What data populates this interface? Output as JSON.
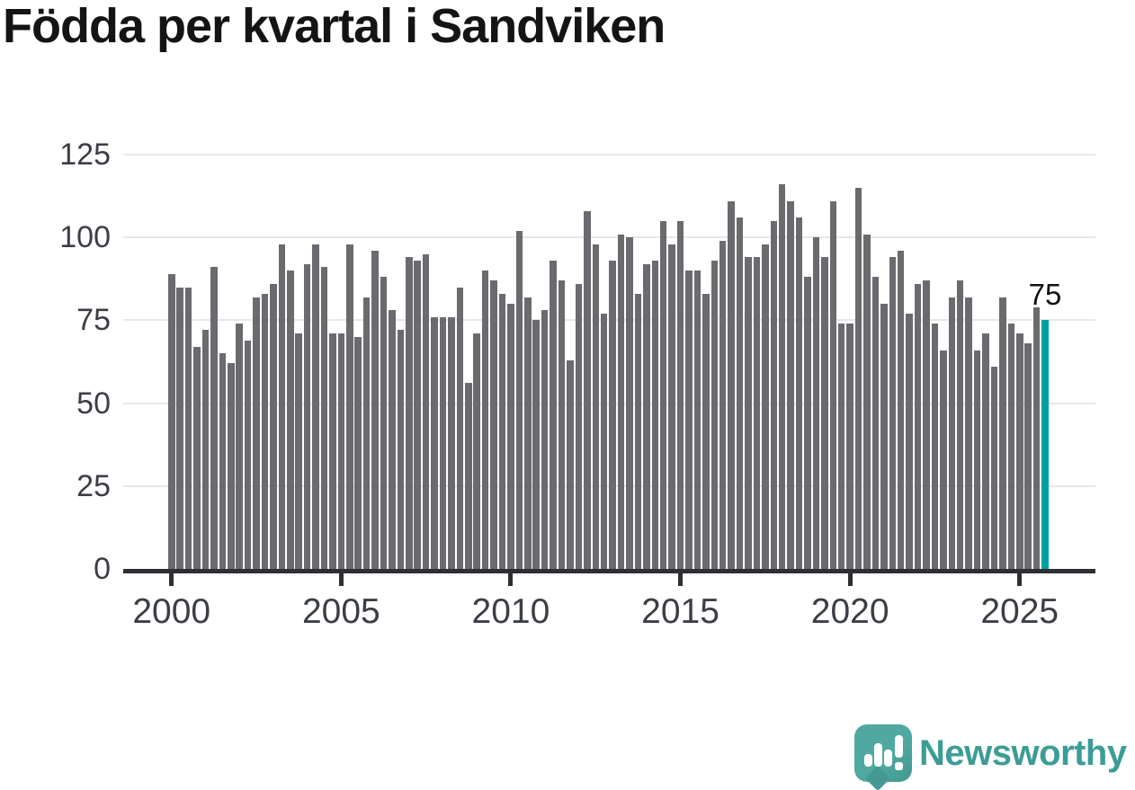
{
  "title": "Födda per kvartal i Sandviken",
  "chart_data": {
    "type": "bar",
    "title": "Födda per kvartal i Sandviken",
    "frequency": "quarterly",
    "x_start": "2000 Q1",
    "x_end": "2025 Q4",
    "values": [
      89,
      85,
      85,
      67,
      72,
      91,
      65,
      62,
      74,
      69,
      82,
      83,
      86,
      98,
      90,
      71,
      92,
      98,
      91,
      71,
      71,
      98,
      70,
      82,
      96,
      88,
      78,
      72,
      94,
      93,
      95,
      76,
      76,
      76,
      85,
      56,
      71,
      90,
      87,
      83,
      80,
      102,
      82,
      75,
      78,
      93,
      87,
      63,
      86,
      108,
      98,
      77,
      93,
      101,
      100,
      83,
      92,
      93,
      105,
      98,
      105,
      90,
      90,
      83,
      93,
      99,
      111,
      106,
      94,
      94,
      98,
      105,
      116,
      111,
      106,
      88,
      100,
      94,
      111,
      74,
      74,
      115,
      101,
      88,
      80,
      94,
      96,
      77,
      86,
      87,
      74,
      66,
      82,
      87,
      82,
      66,
      71,
      61,
      82,
      74,
      71,
      68,
      79,
      75
    ],
    "highlight": {
      "index": 103,
      "value": 75,
      "label": "75",
      "color": "#00a0a0"
    },
    "bar_color": "#6a6a6f",
    "grid_color": "#e7e7e8",
    "axis_color": "#2d2f33",
    "y_ticks": [
      0,
      25,
      50,
      75,
      100,
      125
    ],
    "ylim": [
      0,
      125
    ],
    "x_tick_years": [
      2000,
      2005,
      2010,
      2015,
      2020,
      2025
    ],
    "x_tick_labels": [
      "2000",
      "2005",
      "2010",
      "2015",
      "2020",
      "2025"
    ],
    "grid": "horizontal",
    "legend": "none"
  },
  "branding": {
    "logo_text": "Newsworthy",
    "logo_text_color": "#3c9c96",
    "logo_icon_color": "#4fa9a2",
    "logo_icon": "speech-bubble-bar-chart-exclamation"
  }
}
